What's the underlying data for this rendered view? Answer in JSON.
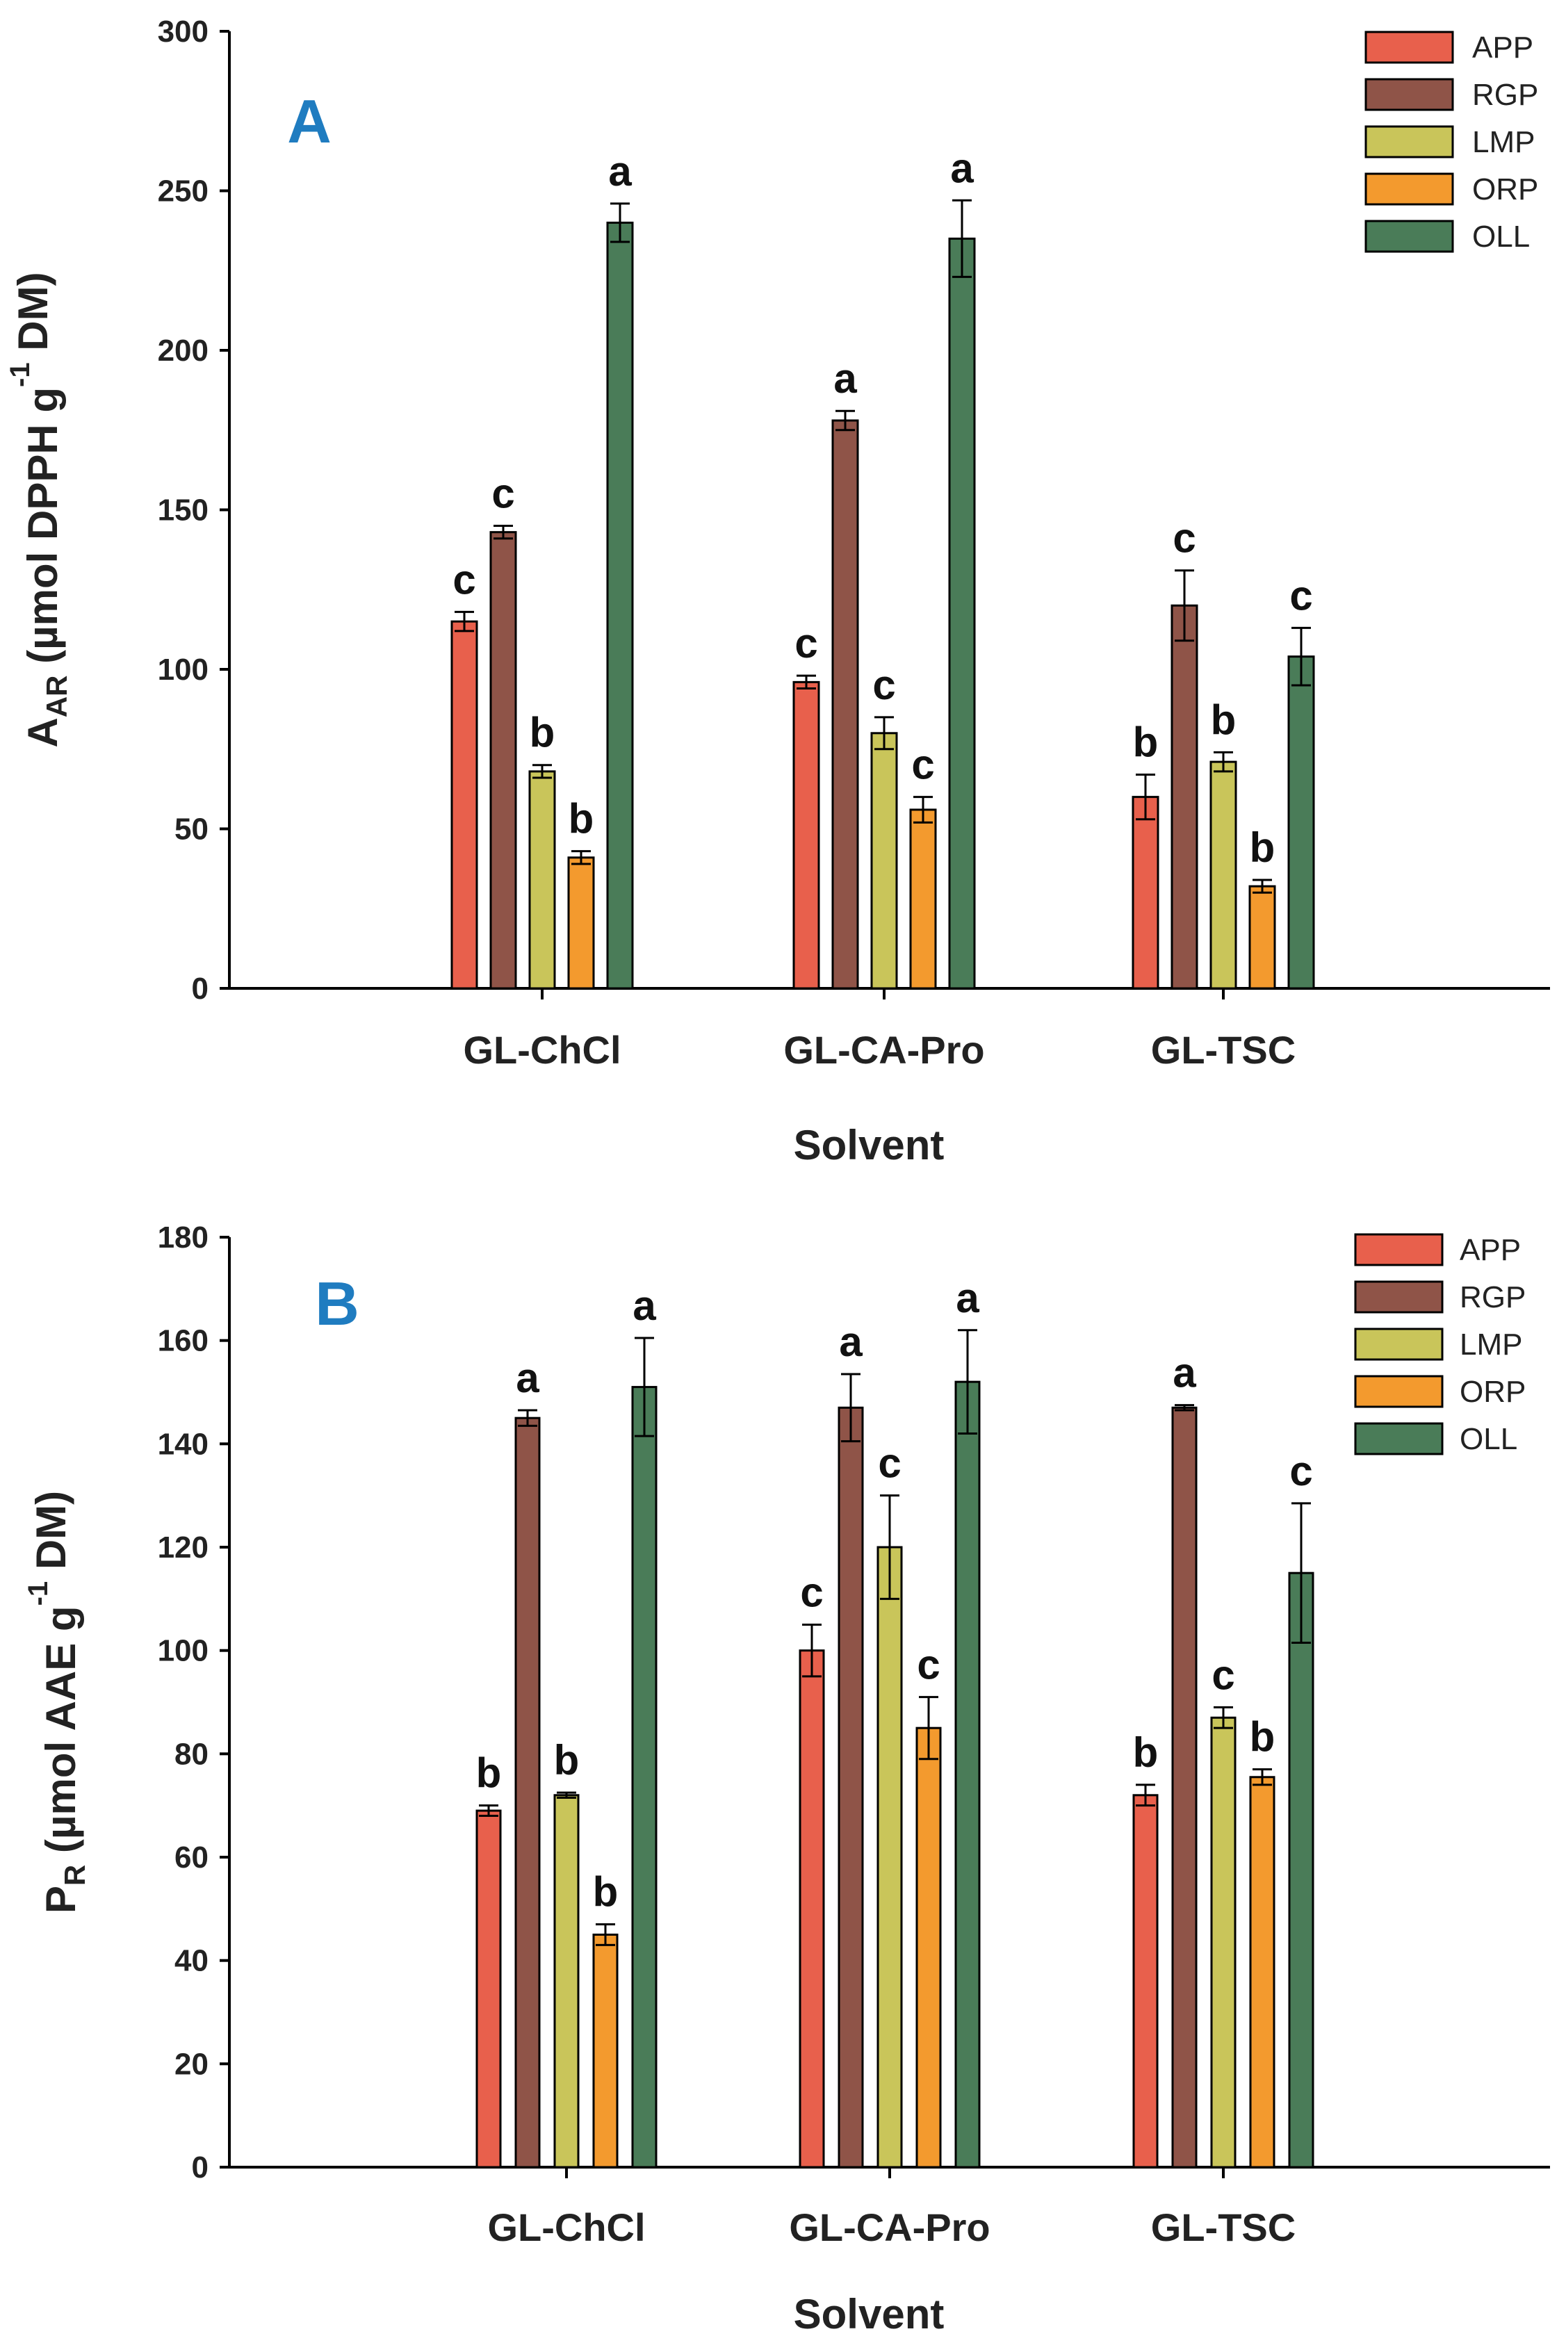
{
  "chart_data": [
    {
      "type": "bar",
      "panel_letter": "A",
      "panel_color": "#1f7cc0",
      "categories": [
        "GL-ChCl",
        "GL-CA-Pro",
        "GL-TSC"
      ],
      "xlabel": "Solvent",
      "ylabel_main": "A",
      "ylabel_sub": "AR",
      "ylabel_rest": " (µmol DPPH g",
      "ylabel_sup": "-1",
      "ylabel_end": " DM)",
      "ylim": [
        0,
        300
      ],
      "yticks": [
        0,
        50,
        100,
        150,
        200,
        250,
        300
      ],
      "legend_position": "top-right",
      "series": [
        {
          "name": "APP",
          "color": "#e8604c",
          "values": [
            115,
            96,
            60
          ],
          "errors": [
            3,
            2,
            7
          ],
          "letters": [
            "c",
            "c",
            "b"
          ]
        },
        {
          "name": "RGP",
          "color": "#8f5448",
          "values": [
            143,
            178,
            120
          ],
          "errors": [
            2,
            3,
            11
          ],
          "letters": [
            "c",
            "a",
            "c"
          ]
        },
        {
          "name": "LMP",
          "color": "#c9c55a",
          "values": [
            68,
            80,
            71
          ],
          "errors": [
            2,
            5,
            3
          ],
          "letters": [
            "b",
            "c",
            "b"
          ]
        },
        {
          "name": "ORP",
          "color": "#f39a2e",
          "values": [
            41,
            56,
            32
          ],
          "errors": [
            2,
            4,
            2
          ],
          "letters": [
            "b",
            "c",
            "b"
          ]
        },
        {
          "name": "OLL",
          "color": "#4a7c58",
          "values": [
            240,
            235,
            104
          ],
          "errors": [
            6,
            12,
            9
          ],
          "letters": [
            "a",
            "a",
            "c"
          ]
        }
      ]
    },
    {
      "type": "bar",
      "panel_letter": "B",
      "panel_color": "#1f7cc0",
      "categories": [
        "GL-ChCl",
        "GL-CA-Pro",
        "GL-TSC"
      ],
      "xlabel": "Solvent",
      "ylabel_main": "P",
      "ylabel_sub": "R",
      "ylabel_rest": " (µmol AAE g",
      "ylabel_sup": "-1",
      "ylabel_end": " DM)",
      "ylim": [
        0,
        180
      ],
      "yticks": [
        0,
        20,
        40,
        60,
        80,
        100,
        120,
        140,
        160,
        180
      ],
      "legend_position": "top-right",
      "series": [
        {
          "name": "APP",
          "color": "#e8604c",
          "values": [
            69,
            100,
            72
          ],
          "errors": [
            1,
            5,
            2
          ],
          "letters": [
            "b",
            "c",
            "b"
          ]
        },
        {
          "name": "RGP",
          "color": "#8f5448",
          "values": [
            145,
            147,
            147
          ],
          "errors": [
            1.5,
            6.5,
            0.5
          ],
          "letters": [
            "a",
            "a",
            "a"
          ]
        },
        {
          "name": "LMP",
          "color": "#c9c55a",
          "values": [
            72,
            120,
            87
          ],
          "errors": [
            0.5,
            10,
            2
          ],
          "letters": [
            "b",
            "c",
            "c"
          ]
        },
        {
          "name": "ORP",
          "color": "#f39a2e",
          "values": [
            45,
            85,
            75.5
          ],
          "errors": [
            2,
            6,
            1.5
          ],
          "letters": [
            "b",
            "c",
            "b"
          ]
        },
        {
          "name": "OLL",
          "color": "#4a7c58",
          "values": [
            151,
            152,
            115
          ],
          "errors": [
            9.5,
            10,
            13.5
          ],
          "letters": [
            "a",
            "a",
            "c"
          ]
        }
      ]
    }
  ]
}
